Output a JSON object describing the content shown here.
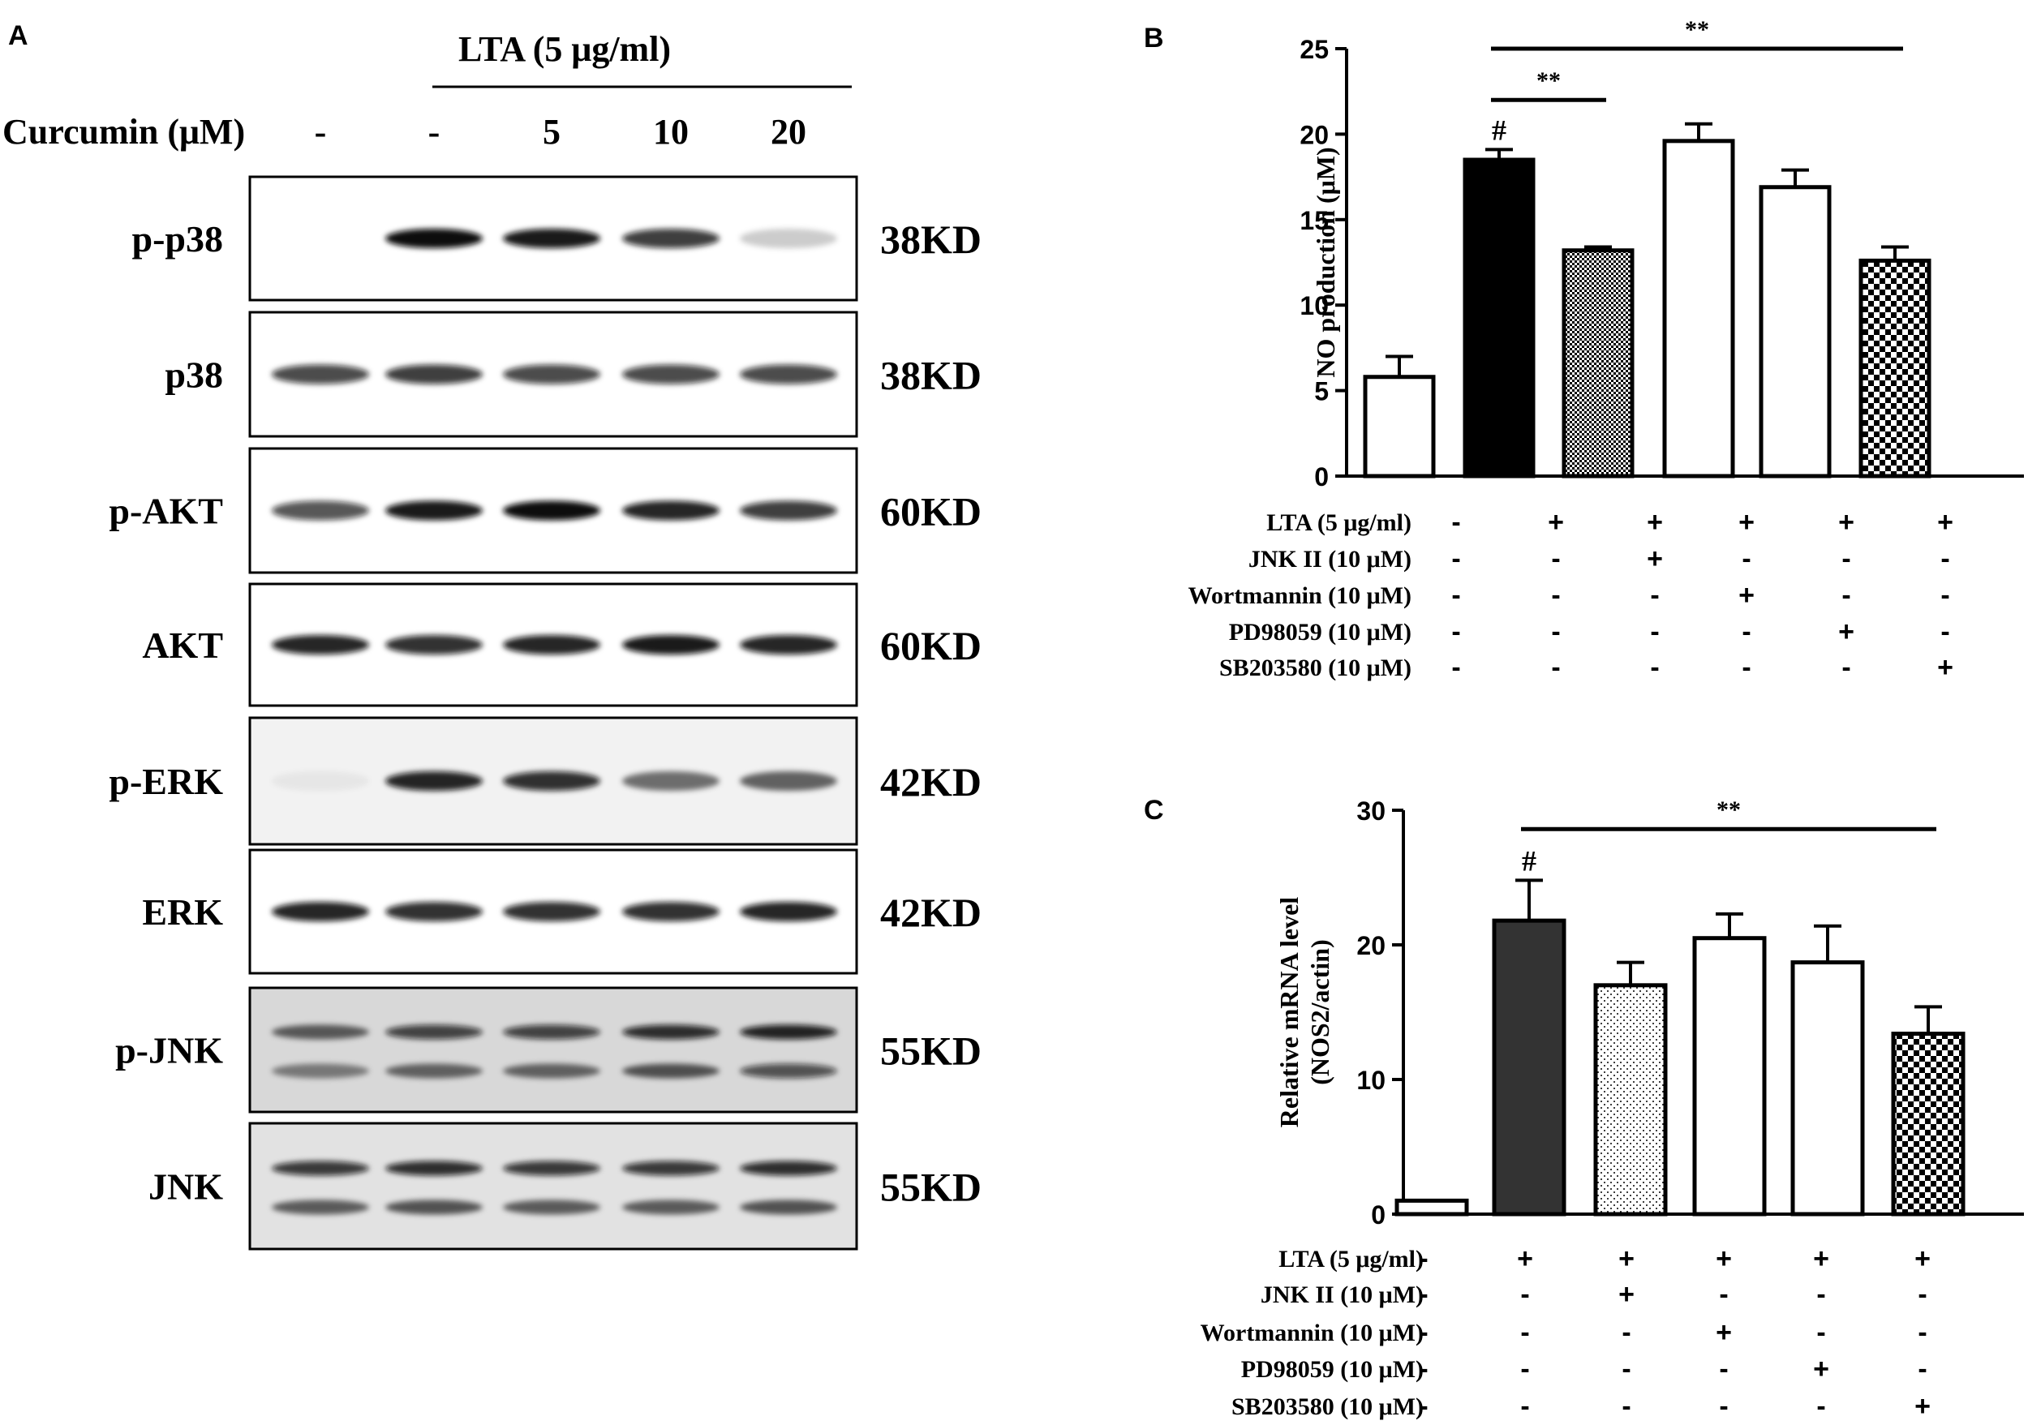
{
  "panel_a": {
    "letter": "A",
    "treatment_label": "LTA (5 μg/ml)",
    "curcumin_label": "Curcumin (μM)",
    "curcumin_levels": [
      "-",
      "-",
      "5",
      "10",
      "20"
    ],
    "blots": [
      {
        "name": "p-p38",
        "size": "38KD",
        "intensities": [
          0.0,
          1.0,
          0.95,
          0.8,
          0.2
        ],
        "background": "#ffffff"
      },
      {
        "name": "p38",
        "size": "38KD",
        "intensities": [
          0.75,
          0.8,
          0.75,
          0.75,
          0.75
        ],
        "background": "#ffffff"
      },
      {
        "name": "p-AKT",
        "size": "60KD",
        "intensities": [
          0.7,
          0.95,
          1.0,
          0.9,
          0.8
        ],
        "background": "#ffffff"
      },
      {
        "name": "AKT",
        "size": "60KD",
        "intensities": [
          0.9,
          0.85,
          0.9,
          0.95,
          0.9
        ],
        "background": "#ffffff"
      },
      {
        "name": "p-ERK",
        "size": "42KD",
        "intensities": [
          0.05,
          0.9,
          0.85,
          0.55,
          0.6
        ],
        "background": "#f2f2f2"
      },
      {
        "name": "ERK",
        "size": "42KD",
        "intensities": [
          0.9,
          0.85,
          0.85,
          0.85,
          0.9
        ],
        "background": "#ffffff"
      },
      {
        "name": "p-JNK",
        "size": "55KD",
        "intensities": [
          0.6,
          0.75,
          0.75,
          0.85,
          0.9
        ],
        "background": "#d8d8d8",
        "double": true
      },
      {
        "name": "JNK",
        "size": "55KD",
        "intensities": [
          0.8,
          0.85,
          0.8,
          0.8,
          0.85
        ],
        "background": "#e2e2e2",
        "double": true
      }
    ]
  },
  "chart_data": [
    {
      "panel": "B",
      "type": "bar",
      "ylabel": "NO production (μM)",
      "ylim": [
        0,
        25
      ],
      "yticks": [
        0,
        5,
        10,
        15,
        20,
        25
      ],
      "values": [
        5.8,
        18.5,
        13.2,
        19.6,
        16.9,
        12.6
      ],
      "errors": [
        1.2,
        0.6,
        0.2,
        1.0,
        1.0,
        0.8
      ],
      "fills": [
        "white",
        "black",
        "dense-dots",
        "white",
        "white",
        "checker"
      ],
      "markers": [
        {
          "bar": 1,
          "text": "#"
        }
      ],
      "significance": [
        {
          "from": 1,
          "to": 2,
          "text": "**",
          "y": 22
        },
        {
          "from": 1,
          "to": 5,
          "text": "**",
          "y": 25
        }
      ],
      "treatments": [
        {
          "label": "LTA (5 μg/ml)",
          "signs": [
            "-",
            "+",
            "+",
            "+",
            "+",
            "+"
          ]
        },
        {
          "label": "JNK II (10 μM)",
          "signs": [
            "-",
            "-",
            "+",
            "-",
            "-",
            "-"
          ]
        },
        {
          "label": "Wortmannin (10 μM)",
          "signs": [
            "-",
            "-",
            "-",
            "+",
            "-",
            "-"
          ]
        },
        {
          "label": "PD98059 (10 μM)",
          "signs": [
            "-",
            "-",
            "-",
            "-",
            "+",
            "-"
          ]
        },
        {
          "label": "SB203580 (10 μM)",
          "signs": [
            "-",
            "-",
            "-",
            "-",
            "-",
            "+"
          ]
        }
      ]
    },
    {
      "panel": "C",
      "type": "bar",
      "ylabel": "Relative mRNA level",
      "ylabel2": "(NOS2/actin)",
      "ylim": [
        0,
        30
      ],
      "yticks": [
        0,
        10,
        20,
        30
      ],
      "values": [
        1.0,
        21.8,
        17.0,
        20.5,
        18.7,
        13.4
      ],
      "errors": [
        0,
        3.0,
        1.7,
        1.8,
        2.7,
        2.0
      ],
      "fills": [
        "white",
        "darkgray",
        "light-dots",
        "white",
        "white",
        "checker"
      ],
      "markers": [
        {
          "bar": 1,
          "text": "#"
        }
      ],
      "significance": [
        {
          "from": 1,
          "to": 5,
          "text": "**",
          "y": 28.6
        }
      ],
      "treatments": [
        {
          "label": "LTA (5 μg/ml)",
          "signs": [
            "-",
            "+",
            "+",
            "+",
            "+",
            "+"
          ]
        },
        {
          "label": "JNK II (10 μM)",
          "signs": [
            "-",
            "-",
            "+",
            "-",
            "-",
            "-"
          ]
        },
        {
          "label": "Wortmannin (10 μM)",
          "signs": [
            "-",
            "-",
            "-",
            "+",
            "-",
            "-"
          ]
        },
        {
          "label": "PD98059 (10 μM)",
          "signs": [
            "-",
            "-",
            "-",
            "-",
            "+",
            "-"
          ]
        },
        {
          "label": "SB203580 (10 μM)",
          "signs": [
            "-",
            "-",
            "-",
            "-",
            "-",
            "+"
          ]
        }
      ]
    }
  ]
}
